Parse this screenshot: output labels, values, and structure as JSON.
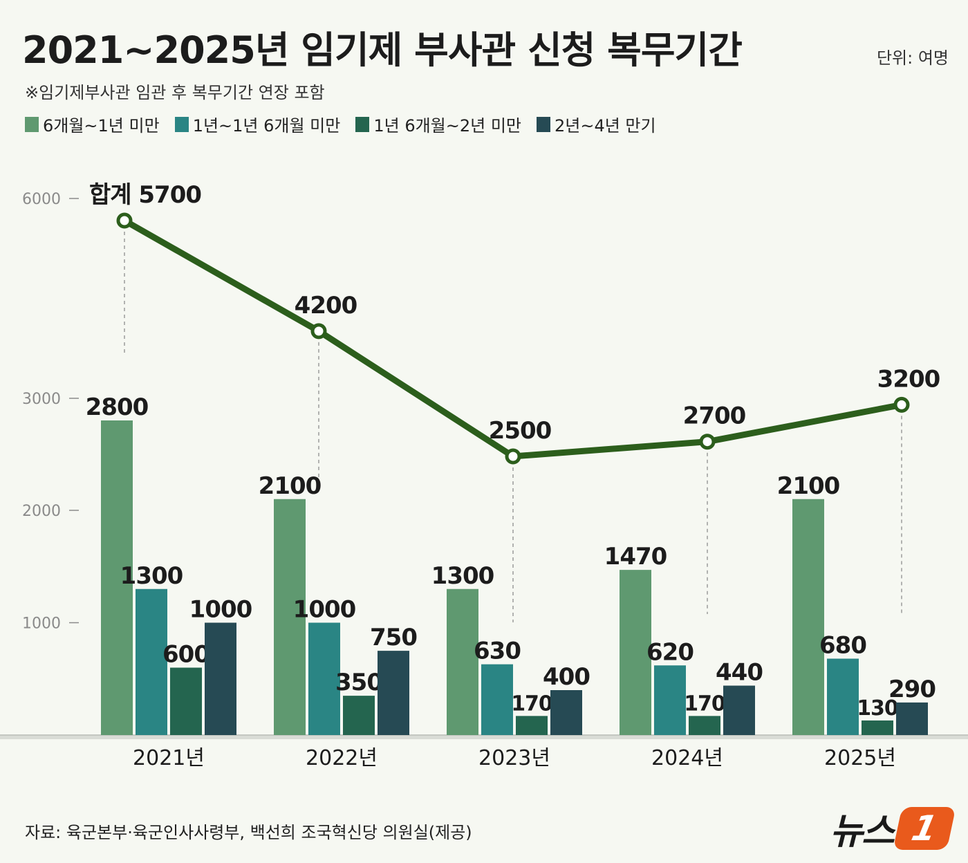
{
  "header": {
    "title": "2021~2025년 임기제 부사관 신청 복무기간",
    "unit": "단위: 여명",
    "note": "※임기제부사관 임관 후 복무기간 연장 포함"
  },
  "footer": {
    "source": "자료: 육군본부·육군인사사령부, 백선희 조국혁신당 의원실(제공)",
    "logo_text": "뉴스",
    "logo_mark": "1"
  },
  "chart_data": {
    "type": "bar",
    "categories": [
      "2021년",
      "2022년",
      "2023년",
      "2024년",
      "2025년"
    ],
    "series": [
      {
        "name": "6개월~1년 미만",
        "color": "#5f9970",
        "values": [
          2800,
          2100,
          1300,
          1470,
          2100
        ]
      },
      {
        "name": "1년~1년 6개월 미만",
        "color": "#2a8584",
        "values": [
          1300,
          1000,
          630,
          620,
          680
        ]
      },
      {
        "name": "1년 6개월~2년 미만",
        "color": "#24654f",
        "values": [
          600,
          350,
          170,
          170,
          130
        ]
      },
      {
        "name": "2년~4년 만기",
        "color": "#264a54",
        "values": [
          1000,
          750,
          400,
          440,
          290
        ]
      }
    ],
    "total": {
      "type": "line",
      "color": "#2c5e1c",
      "values": [
        5700,
        4200,
        2500,
        2700,
        3200
      ],
      "labels": [
        "합계 5700",
        "4200",
        "2500",
        "2700",
        "3200"
      ]
    },
    "y_ticks": [
      "1000",
      "2000",
      "3000",
      "6000"
    ],
    "y_tick_values": [
      1000,
      2000,
      3000,
      6000
    ],
    "y_scale": "broken",
    "grid": false
  }
}
